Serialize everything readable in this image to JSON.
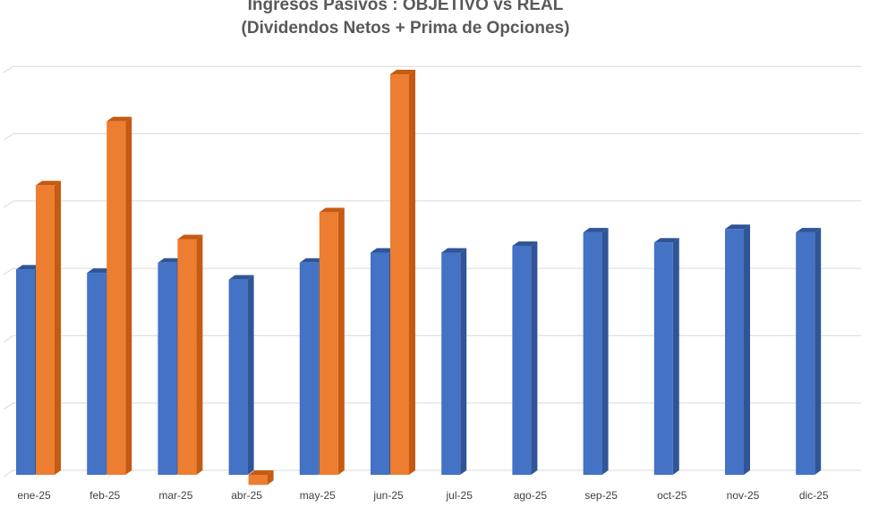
{
  "chart_data": {
    "type": "bar",
    "title": "Ingresos Pasivos : OBJETIVO vs REAL",
    "subtitle": "(Dividendos Netos + Prima de Opciones)",
    "categories": [
      "ene-25",
      "feb-25",
      "mar-25",
      "abr-25",
      "may-25",
      "jun-25",
      "jul-25",
      "ago-25",
      "sep-25",
      "oct-25",
      "nov-25",
      "dic-25"
    ],
    "series": [
      {
        "values": [
          3.05,
          3.0,
          3.15,
          2.9,
          3.15,
          3.3,
          3.3,
          3.4,
          3.6,
          3.45,
          3.65,
          3.6
        ],
        "color": "#4472C4",
        "side_color": "#2F5597"
      },
      {
        "values": [
          4.3,
          5.25,
          3.5,
          -0.15,
          3.9,
          5.95,
          null,
          null,
          null,
          null,
          null,
          null
        ],
        "color": "#ED7D31",
        "side_color": "#C55A11"
      }
    ],
    "ylim": [
      -0.15,
      6.0
    ],
    "grid": true,
    "legend": "none",
    "style": "3d-clustered-column"
  }
}
